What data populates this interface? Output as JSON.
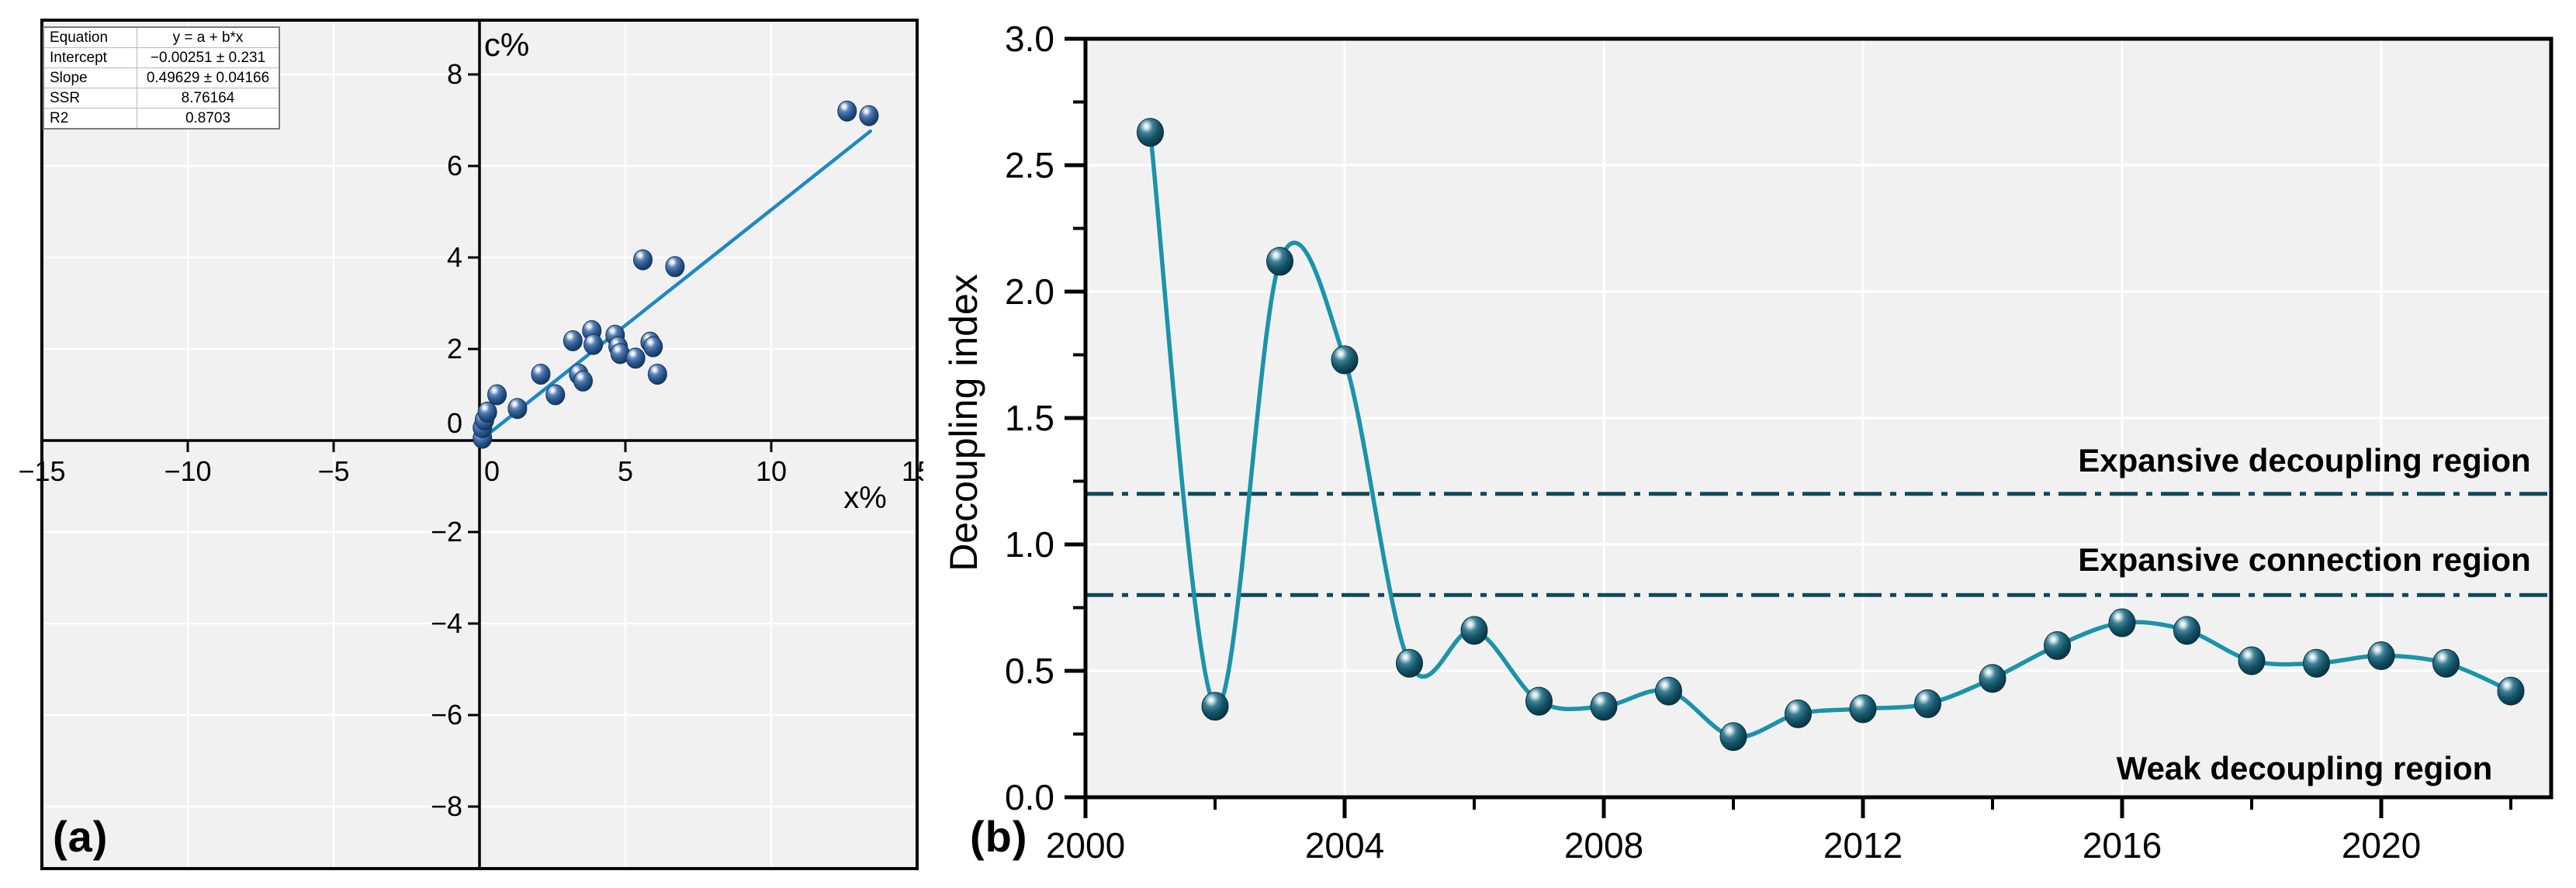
{
  "figure": {
    "background": "#ffffff",
    "plot_background": "#f1f1f2",
    "grid_color": "#ffffff",
    "frame_color": "#000000"
  },
  "chart_data": [
    {
      "type": "scatter",
      "panel_label": "(a)",
      "xlabel": "x%",
      "ylabel": "c%",
      "xlim": [
        -15,
        15
      ],
      "ylim": [
        -9.4,
        9.2
      ],
      "x_ticks": [
        -15,
        -10,
        -5,
        0,
        5,
        10,
        15
      ],
      "y_ticks": [
        -8,
        -6,
        -4,
        -2,
        0,
        2,
        4,
        6,
        8
      ],
      "grid": true,
      "legend_position": "none",
      "points": [
        [
          0.1,
          0.05
        ],
        [
          0.1,
          0.28
        ],
        [
          0.17,
          0.45
        ],
        [
          0.27,
          0.62
        ],
        [
          0.6,
          1.0
        ],
        [
          1.3,
          0.7
        ],
        [
          2.1,
          1.45
        ],
        [
          2.6,
          1.0
        ],
        [
          3.2,
          2.18
        ],
        [
          3.4,
          1.45
        ],
        [
          3.55,
          1.3
        ],
        [
          3.85,
          2.4
        ],
        [
          3.9,
          2.1
        ],
        [
          4.65,
          2.3
        ],
        [
          4.75,
          2.05
        ],
        [
          4.82,
          1.9
        ],
        [
          5.35,
          1.8
        ],
        [
          5.6,
          3.95
        ],
        [
          5.85,
          2.15
        ],
        [
          5.95,
          2.05
        ],
        [
          6.1,
          1.45
        ],
        [
          6.7,
          3.8
        ],
        [
          12.6,
          7.2
        ],
        [
          13.35,
          7.1
        ]
      ],
      "fit_line": {
        "x1": 0.02,
        "y1": 0.0,
        "x2": 13.4,
        "y2": 6.76
      },
      "stats_table": {
        "rows": [
          {
            "label": "Equation",
            "value": "y = a + b*x"
          },
          {
            "label": "Intercept",
            "value": "−0.00251 ± 0.231"
          },
          {
            "label": "Slope",
            "value": "0.49629 ± 0.04166"
          },
          {
            "label": "SSR",
            "value": "8.76164"
          },
          {
            "label": "R2",
            "value": "0.8703"
          }
        ]
      },
      "colors": {
        "line": "#1e88c4",
        "marker": "#1d4d7d",
        "marker_edge": "#123457"
      }
    },
    {
      "type": "line",
      "panel_label": "(b)",
      "xlabel": "",
      "ylabel": "Decoupling index",
      "x": [
        2001,
        2002,
        2003,
        2004,
        2005,
        2006,
        2007,
        2008,
        2009,
        2010,
        2011,
        2012,
        2013,
        2014,
        2015,
        2016,
        2017,
        2018,
        2019,
        2020,
        2021,
        2022
      ],
      "values": [
        2.63,
        0.36,
        2.12,
        1.73,
        0.53,
        0.66,
        0.38,
        0.36,
        0.42,
        0.24,
        0.33,
        0.35,
        0.37,
        0.47,
        0.6,
        0.69,
        0.66,
        0.54,
        0.53,
        0.56,
        0.53,
        0.42
      ],
      "xlim": [
        2000,
        2022.6
      ],
      "ylim": [
        0.0,
        3.0
      ],
      "x_ticks": [
        2000,
        2004,
        2008,
        2012,
        2016,
        2020
      ],
      "x_minor_ticks": [
        2002,
        2006,
        2010,
        2014,
        2018,
        2022
      ],
      "y_ticks": [
        0.0,
        0.5,
        1.0,
        1.5,
        2.0,
        2.5,
        3.0
      ],
      "y_minor_ticks": [
        0.25,
        0.75,
        1.25,
        1.75,
        2.25,
        2.75
      ],
      "y_tick_decimals": 1,
      "grid": true,
      "reference_lines": [
        {
          "y": 1.2
        },
        {
          "y": 0.8
        }
      ],
      "region_labels": [
        {
          "text": "Expansive decoupling region",
          "y": 1.33
        },
        {
          "text": "Expansive connection region",
          "y": 0.94
        },
        {
          "text": "Weak decoupling region",
          "y": 0.115
        }
      ],
      "colors": {
        "line": "#1b93a8",
        "marker": "#0d4456",
        "marker_edge": "#06303d",
        "reference_line": "#0d4a5a"
      }
    }
  ]
}
